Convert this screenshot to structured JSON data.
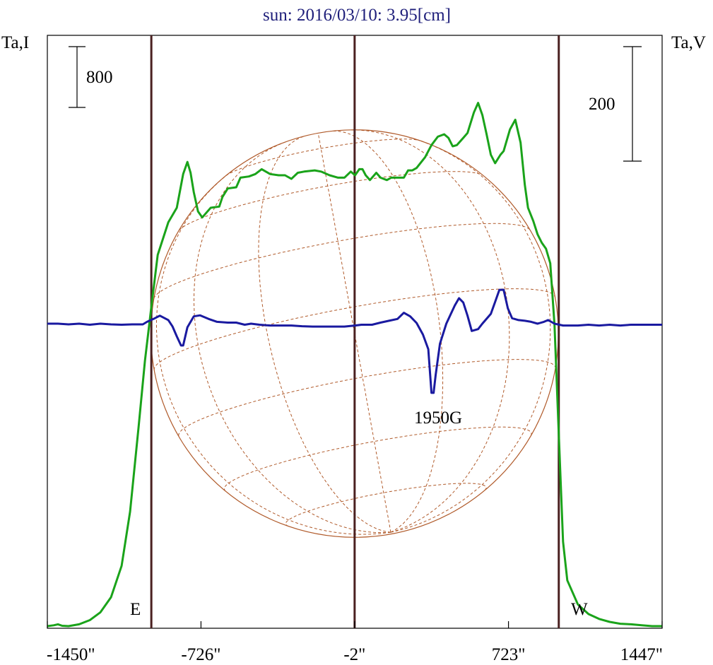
{
  "chart_data": {
    "type": "line",
    "title": "sun: 2016/03/10: 3.95[cm]",
    "left_axis_label": "Ta,I",
    "right_axis_label": "Ta,V",
    "x_tick_labels": [
      "-1450\"",
      "-726\"",
      "-2\"",
      "723\"",
      "1447\""
    ],
    "x_ticks": [
      -1450,
      -726,
      -2,
      723,
      1447
    ],
    "xlim": [
      -1450,
      1447
    ],
    "scale_bars": [
      {
        "label": "800",
        "axis": "left",
        "value": 800
      },
      {
        "label": "200",
        "axis": "right",
        "value": 200
      }
    ],
    "limb_labels": {
      "east": "E",
      "west": "W"
    },
    "vertical_lines": [
      -960,
      -2,
      960
    ],
    "annotation": "1950G",
    "series": [
      {
        "id": "intensity",
        "color": "#1aa31a",
        "points": [
          [
            -1450,
            0
          ],
          [
            -1420,
            7
          ],
          [
            -1400,
            15
          ],
          [
            -1380,
            3
          ],
          [
            -1350,
            0
          ],
          [
            -1300,
            15
          ],
          [
            -1250,
            50
          ],
          [
            -1200,
            115
          ],
          [
            -1150,
            240
          ],
          [
            -1100,
            500
          ],
          [
            -1060,
            950
          ],
          [
            -1020,
            1650
          ],
          [
            -990,
            2200
          ],
          [
            -960,
            2650
          ],
          [
            -930,
            3080
          ],
          [
            -880,
            3350
          ],
          [
            -840,
            3470
          ],
          [
            -810,
            3750
          ],
          [
            -790,
            3850
          ],
          [
            -775,
            3760
          ],
          [
            -760,
            3600
          ],
          [
            -740,
            3440
          ],
          [
            -720,
            3390
          ],
          [
            -700,
            3430
          ],
          [
            -680,
            3470
          ],
          [
            -640,
            3480
          ],
          [
            -625,
            3560
          ],
          [
            -600,
            3630
          ],
          [
            -560,
            3640
          ],
          [
            -540,
            3720
          ],
          [
            -500,
            3730
          ],
          [
            -470,
            3750
          ],
          [
            -440,
            3790
          ],
          [
            -400,
            3750
          ],
          [
            -360,
            3740
          ],
          [
            -330,
            3740
          ],
          [
            -300,
            3710
          ],
          [
            -270,
            3760
          ],
          [
            -240,
            3770
          ],
          [
            -190,
            3780
          ],
          [
            -160,
            3770
          ],
          [
            -120,
            3740
          ],
          [
            -80,
            3720
          ],
          [
            -50,
            3720
          ],
          [
            -20,
            3770
          ],
          [
            0,
            3740
          ],
          [
            20,
            3790
          ],
          [
            35,
            3790
          ],
          [
            50,
            3740
          ],
          [
            70,
            3700
          ],
          [
            100,
            3760
          ],
          [
            120,
            3720
          ],
          [
            150,
            3700
          ],
          [
            170,
            3720
          ],
          [
            200,
            3720
          ],
          [
            230,
            3720
          ],
          [
            250,
            3780
          ],
          [
            270,
            3780
          ],
          [
            290,
            3800
          ],
          [
            330,
            3890
          ],
          [
            360,
            3990
          ],
          [
            390,
            4060
          ],
          [
            420,
            4080
          ],
          [
            440,
            4050
          ],
          [
            460,
            3980
          ],
          [
            480,
            3990
          ],
          [
            510,
            4050
          ],
          [
            530,
            4090
          ],
          [
            560,
            4260
          ],
          [
            580,
            4340
          ],
          [
            600,
            4240
          ],
          [
            620,
            4080
          ],
          [
            640,
            3910
          ],
          [
            660,
            3840
          ],
          [
            685,
            3910
          ],
          [
            700,
            3940
          ],
          [
            730,
            4120
          ],
          [
            755,
            4200
          ],
          [
            780,
            4010
          ],
          [
            800,
            3660
          ],
          [
            815,
            3470
          ],
          [
            840,
            3360
          ],
          [
            860,
            3250
          ],
          [
            880,
            3180
          ],
          [
            900,
            3130
          ],
          [
            920,
            3010
          ],
          [
            940,
            2500
          ],
          [
            960,
            1600
          ],
          [
            980,
            700
          ],
          [
            1000,
            380
          ],
          [
            1050,
            180
          ],
          [
            1100,
            100
          ],
          [
            1150,
            60
          ],
          [
            1200,
            35
          ],
          [
            1250,
            20
          ],
          [
            1300,
            15
          ],
          [
            1350,
            7
          ],
          [
            1400,
            0
          ],
          [
            1447,
            0
          ]
        ]
      },
      {
        "id": "polarization",
        "color": "#1a1aa0",
        "points": [
          [
            -1450,
            0
          ],
          [
            -1400,
            0
          ],
          [
            -1350,
            -2
          ],
          [
            -1300,
            0
          ],
          [
            -1250,
            -3
          ],
          [
            -1200,
            0
          ],
          [
            -1150,
            -2
          ],
          [
            -1100,
            -3
          ],
          [
            -1050,
            -2
          ],
          [
            -1000,
            -2
          ],
          [
            -980,
            5
          ],
          [
            -950,
            13
          ],
          [
            -920,
            22
          ],
          [
            -880,
            10
          ],
          [
            -860,
            -8
          ],
          [
            -840,
            -35
          ],
          [
            -820,
            -60
          ],
          [
            -810,
            -60
          ],
          [
            -790,
            -10
          ],
          [
            -760,
            20
          ],
          [
            -730,
            23
          ],
          [
            -690,
            13
          ],
          [
            -650,
            5
          ],
          [
            -600,
            3
          ],
          [
            -560,
            3
          ],
          [
            -520,
            -3
          ],
          [
            -490,
            0
          ],
          [
            -450,
            -3
          ],
          [
            -400,
            -5
          ],
          [
            -350,
            -5
          ],
          [
            -300,
            -5
          ],
          [
            -250,
            -7
          ],
          [
            -200,
            -8
          ],
          [
            -150,
            -8
          ],
          [
            -100,
            -8
          ],
          [
            -50,
            -8
          ],
          [
            0,
            -5
          ],
          [
            30,
            -3
          ],
          [
            80,
            -3
          ],
          [
            120,
            3
          ],
          [
            160,
            8
          ],
          [
            200,
            13
          ],
          [
            230,
            30
          ],
          [
            260,
            20
          ],
          [
            290,
            2
          ],
          [
            320,
            -30
          ],
          [
            345,
            -70
          ],
          [
            360,
            -190
          ],
          [
            370,
            -190
          ],
          [
            380,
            -140
          ],
          [
            400,
            -55
          ],
          [
            430,
            0
          ],
          [
            470,
            50
          ],
          [
            490,
            70
          ],
          [
            510,
            58
          ],
          [
            530,
            22
          ],
          [
            550,
            -20
          ],
          [
            580,
            -15
          ],
          [
            600,
            0
          ],
          [
            640,
            27
          ],
          [
            660,
            60
          ],
          [
            680,
            93
          ],
          [
            700,
            93
          ],
          [
            720,
            42
          ],
          [
            740,
            15
          ],
          [
            770,
            10
          ],
          [
            800,
            8
          ],
          [
            830,
            5
          ],
          [
            860,
            0
          ],
          [
            890,
            5
          ],
          [
            910,
            10
          ],
          [
            940,
            0
          ],
          [
            980,
            -5
          ],
          [
            1000,
            -5
          ],
          [
            1050,
            -5
          ],
          [
            1100,
            -3
          ],
          [
            1150,
            -5
          ],
          [
            1200,
            -3
          ],
          [
            1250,
            -5
          ],
          [
            1300,
            -3
          ],
          [
            1350,
            -3
          ],
          [
            1400,
            -3
          ],
          [
            1447,
            -3
          ]
        ]
      }
    ],
    "grid": false,
    "background": "#ffffff",
    "limb_color": "#b05a2a",
    "divider_color": "#4a2020"
  }
}
